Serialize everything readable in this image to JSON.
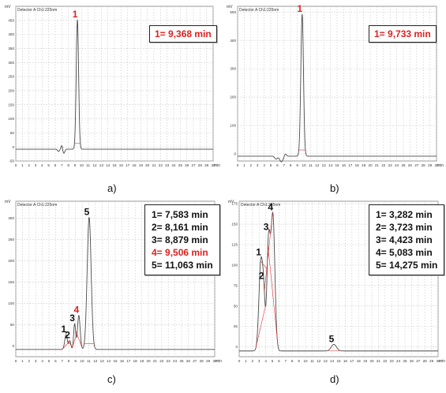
{
  "chart_data": [
    {
      "id": "a",
      "type": "line",
      "caption": "a)",
      "detector_label": "Detector A Ch1:225nm",
      "y_unit": "mV",
      "x_unit": "min",
      "xlim": [
        0,
        30
      ],
      "ylim": [
        -50,
        500
      ],
      "x_ticks": [
        0,
        1,
        2,
        3,
        4,
        5,
        6,
        7,
        8,
        9,
        10,
        11,
        12,
        13,
        14,
        15,
        16,
        17,
        18,
        19,
        20,
        21,
        22,
        23,
        24,
        25,
        26,
        27,
        28,
        29,
        30
      ],
      "y_ticks": [
        -50,
        0,
        50,
        100,
        150,
        200,
        250,
        300,
        350,
        400,
        450
      ],
      "grid": true,
      "baseline": -8,
      "peaks": [
        {
          "label": "1",
          "rt": 9.368,
          "height": 460,
          "width": 0.18,
          "label_color": "#e02020"
        }
      ],
      "disturbances": [
        {
          "x": 6.5,
          "amp": -8,
          "width": 0.15
        },
        {
          "x": 7.0,
          "amp": 14,
          "width": 0.12
        },
        {
          "x": 7.3,
          "amp": -15,
          "width": 0.15
        }
      ],
      "rt_box": {
        "lines": [
          {
            "text": "1= 9,368 min",
            "color": "#e02020"
          }
        ]
      }
    },
    {
      "id": "b",
      "type": "line",
      "caption": "b)",
      "detector_label": "Detector A Ch1:225nm",
      "y_unit": "mV",
      "x_unit": "min",
      "xlim": [
        0,
        30
      ],
      "ylim": [
        -25,
        520
      ],
      "x_ticks": [
        0,
        1,
        2,
        3,
        4,
        5,
        6,
        7,
        8,
        9,
        10,
        11,
        12,
        13,
        14,
        15,
        16,
        17,
        18,
        19,
        20,
        21,
        22,
        23,
        24,
        25,
        26,
        27,
        28,
        29,
        30
      ],
      "y_ticks": [
        0,
        100,
        200,
        300,
        400,
        500
      ],
      "grid": true,
      "baseline": -8,
      "peaks": [
        {
          "label": "1",
          "rt": 9.733,
          "height": 500,
          "width": 0.2,
          "label_color": "#e02020"
        }
      ],
      "disturbances": [
        {
          "x": 5.8,
          "amp": -10,
          "width": 0.2
        },
        {
          "x": 6.6,
          "amp": -20,
          "width": 0.25
        },
        {
          "x": 7.2,
          "amp": 8,
          "width": 0.15
        }
      ],
      "rt_box": {
        "lines": [
          {
            "text": "1= 9,733 min",
            "color": "#e02020"
          }
        ]
      }
    },
    {
      "id": "c",
      "type": "line",
      "caption": "c)",
      "detector_label": "Detector A Ch1:225nm",
      "y_unit": "mV",
      "x_unit": "min",
      "xlim": [
        0,
        30
      ],
      "ylim": [
        -25,
        340
      ],
      "x_ticks": [
        0,
        1,
        2,
        3,
        4,
        5,
        6,
        7,
        8,
        9,
        10,
        11,
        12,
        13,
        14,
        15,
        16,
        17,
        18,
        19,
        20,
        21,
        22,
        23,
        24,
        25,
        26,
        27,
        28,
        29,
        30
      ],
      "y_ticks": [
        0,
        50,
        100,
        150,
        200,
        250,
        300
      ],
      "grid": true,
      "baseline": -8,
      "peaks": [
        {
          "label": "1",
          "rt": 7.583,
          "height": 35,
          "width": 0.2,
          "label_color": "#111111"
        },
        {
          "label": "2",
          "rt": 8.161,
          "height": 20,
          "width": 0.15,
          "label_color": "#111111"
        },
        {
          "label": "3",
          "rt": 8.879,
          "height": 60,
          "width": 0.15,
          "label_color": "#111111"
        },
        {
          "label": "4",
          "rt": 9.506,
          "height": 80,
          "width": 0.2,
          "label_color": "#e02020"
        },
        {
          "label": "5",
          "rt": 11.063,
          "height": 310,
          "width": 0.3,
          "label_color": "#111111"
        }
      ],
      "disturbances": [],
      "rt_box": {
        "lines": [
          {
            "text": "1= 7,583 min",
            "color": "#111111"
          },
          {
            "text": "2= 8,161 min",
            "color": "#111111"
          },
          {
            "text": "3= 8,879 min",
            "color": "#111111"
          },
          {
            "text": "4= 9,506 min",
            "color": "#e02020"
          },
          {
            "text": "5= 11,063 min",
            "color": "#111111"
          }
        ]
      }
    },
    {
      "id": "d",
      "type": "line",
      "caption": "d)",
      "detector_label": "Detector A Ch1:225nm",
      "y_unit": "mV",
      "x_unit": "min",
      "xlim": [
        0,
        30
      ],
      "ylim": [
        -12,
        178
      ],
      "x_ticks": [
        0,
        1,
        2,
        3,
        4,
        5,
        6,
        7,
        8,
        9,
        10,
        11,
        12,
        13,
        14,
        15,
        16,
        17,
        18,
        19,
        20,
        21,
        22,
        23,
        24,
        25,
        26,
        27,
        28,
        29,
        30
      ],
      "y_ticks": [
        0,
        25,
        50,
        75,
        100,
        125,
        150,
        175
      ],
      "grid": true,
      "baseline": -5,
      "peaks": [
        {
          "label": "1",
          "rt": 3.282,
          "height": 110,
          "width": 0.3,
          "label_color": "#111111"
        },
        {
          "label": "2",
          "rt": 3.723,
          "height": 45,
          "width": 0.2,
          "label_color": "#111111"
        },
        {
          "label": "3",
          "rt": 4.423,
          "height": 130,
          "width": 0.25,
          "label_color": "#111111"
        },
        {
          "label": "4",
          "rt": 5.083,
          "height": 165,
          "width": 0.3,
          "label_color": "#111111"
        },
        {
          "label": "5",
          "rt": 14.275,
          "height": 8,
          "width": 0.4,
          "label_color": "#111111"
        }
      ],
      "disturbances": [],
      "rt_box": {
        "lines": [
          {
            "text": "1= 3,282 min",
            "color": "#111111"
          },
          {
            "text": "2= 3,723 min",
            "color": "#111111"
          },
          {
            "text": "3= 4,423 min",
            "color": "#111111"
          },
          {
            "text": "4= 5,083 min",
            "color": "#111111"
          },
          {
            "text": "5= 14,275 min",
            "color": "#111111"
          }
        ]
      }
    }
  ]
}
